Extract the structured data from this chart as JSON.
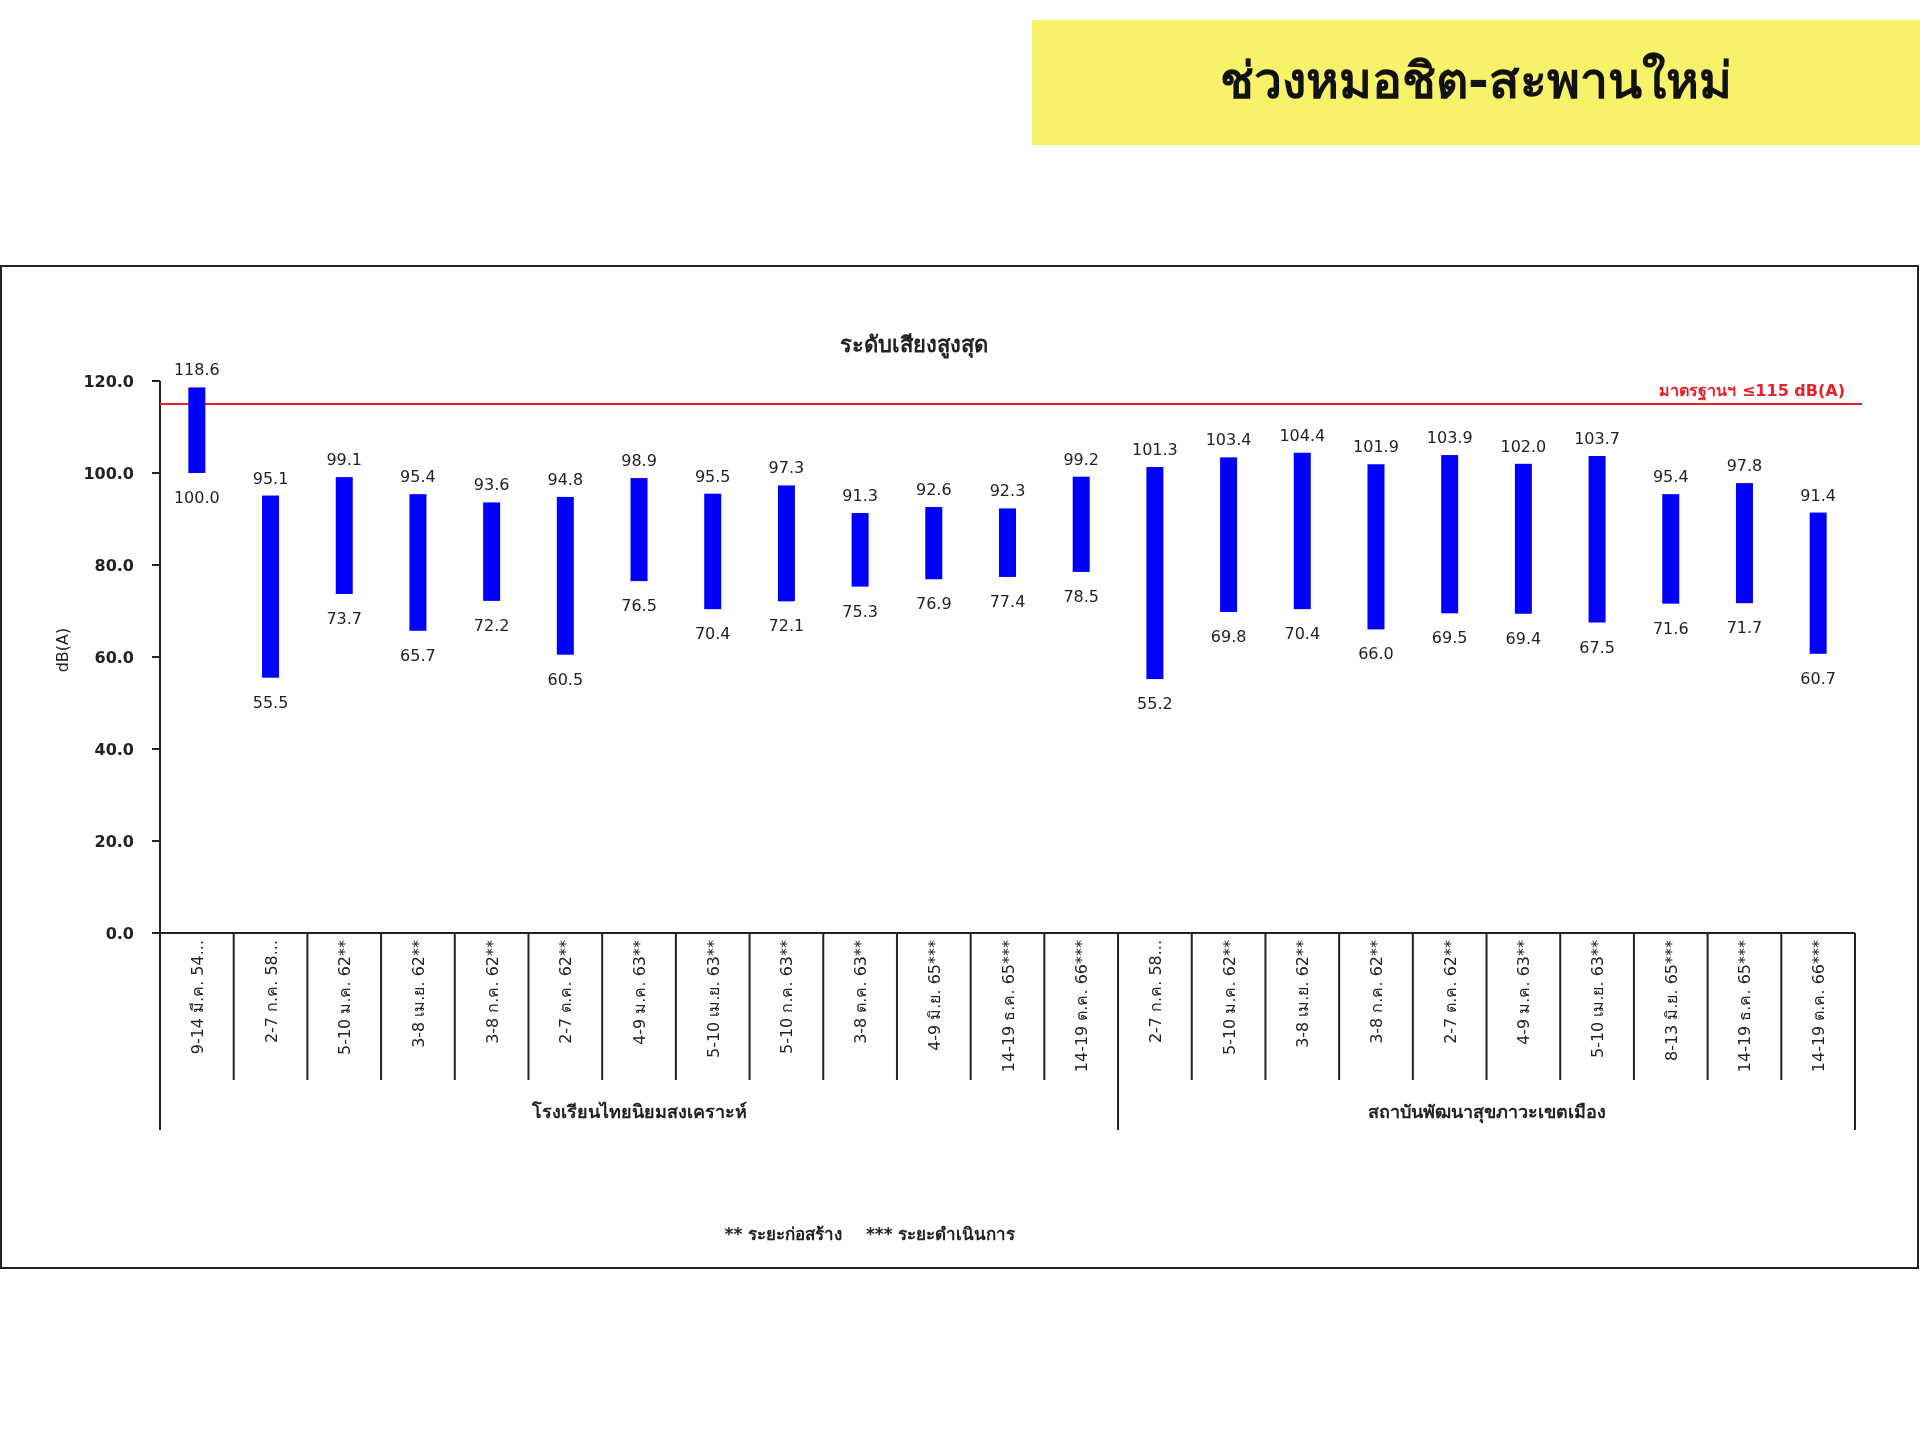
{
  "chart_data": {
    "type": "bar",
    "title": "ช่วงหมอชิต-สะพานใหม่",
    "subtitle": "ระดับเสียงสูงสุด",
    "ylabel": "dB(A)",
    "categories": [
      "9-14 มี.ค. 54...",
      "2-7 ก.ค. 58...",
      "5-10 ม.ค. 62**",
      "3-8 เม.ย. 62**",
      "3-8 ก.ค. 62**",
      "2-7 ต.ค. 62**",
      "4-9 ม.ค. 63**",
      "5-10 เม.ย. 63**",
      "5-10 ก.ค. 63**",
      "3-8 ต.ค. 63**",
      "4-9 มิ.ย. 65***",
      "14-19 ธ.ค. 65***",
      "14-19 ต.ค. 66***",
      "2-7 ก.ค. 58...",
      "5-10 ม.ค. 62**",
      "3-8 เม.ย. 62**",
      "3-8 ก.ค. 62**",
      "2-7 ต.ค. 62**",
      "4-9 ม.ค. 63**",
      "5-10 เม.ย. 63**",
      "8-13 มิ.ย. 65***",
      "14-19 ธ.ค. 65***",
      "14-19 ต.ค. 66***"
    ],
    "base": [
      100.0,
      55.5,
      73.7,
      65.7,
      72.2,
      60.5,
      76.5,
      70.4,
      72.1,
      75.3,
      76.9,
      77.4,
      78.5,
      55.2,
      69.8,
      70.4,
      66.0,
      69.5,
      69.4,
      67.5,
      71.6,
      71.7,
      60.7
    ],
    "values": [
      18.6,
      39.6,
      25.4,
      29.7,
      21.4,
      34.3,
      22.4,
      25.1,
      25.2,
      16.0,
      15.7,
      14.9,
      20.7,
      46.1,
      33.6,
      34.0,
      35.9,
      34.4,
      32.6,
      36.2,
      23.8,
      26.1,
      30.7
    ],
    "value_labels": [
      "118.6",
      "95.1",
      "99.1",
      "95.4",
      "93.6",
      "94.8",
      "98.9",
      "95.5",
      "97.3",
      "91.3",
      "92.6",
      "92.3",
      "99.2",
      "101.3",
      "103.4",
      "104.4",
      "101.9",
      "103.9",
      "102.0",
      "103.7",
      "95.4",
      "97.8",
      "91.4"
    ],
    "color": "#0000ff",
    "ylim": [
      0,
      120
    ],
    "yticks": [
      {
        "value": 0,
        "label": "0.0"
      },
      {
        "value": 20,
        "label": "20.0"
      },
      {
        "value": 40,
        "label": "40.0"
      },
      {
        "value": 60,
        "label": "60.0"
      },
      {
        "value": 80,
        "label": "80.0"
      },
      {
        "value": 100,
        "label": "100.0"
      },
      {
        "value": 120,
        "label": "120.0"
      }
    ],
    "ref_lines": [
      {
        "axis": "y",
        "value": 115,
        "label": "มาตรฐานฯ ≤115 dB(A)",
        "color": "#e8202a"
      }
    ],
    "annotations": [
      "โรงเรียนไทยนิยมสงเคราะห์",
      "สถาบันพัฒนาสุขภาวะเขตเมือง",
      "100.0",
      "55.5",
      "73.7",
      "65.7",
      "72.2",
      "60.5",
      "76.5",
      "70.4",
      "72.1",
      "75.3",
      "76.9",
      "77.4",
      "78.5",
      "55.2",
      "69.8",
      "70.4",
      "66.0",
      "69.5",
      "69.4",
      "67.5",
      "71.6",
      "71.7",
      "60.7",
      "** ระยะก่อสร้าง    *** ระยะดำเนินการ"
    ]
  }
}
